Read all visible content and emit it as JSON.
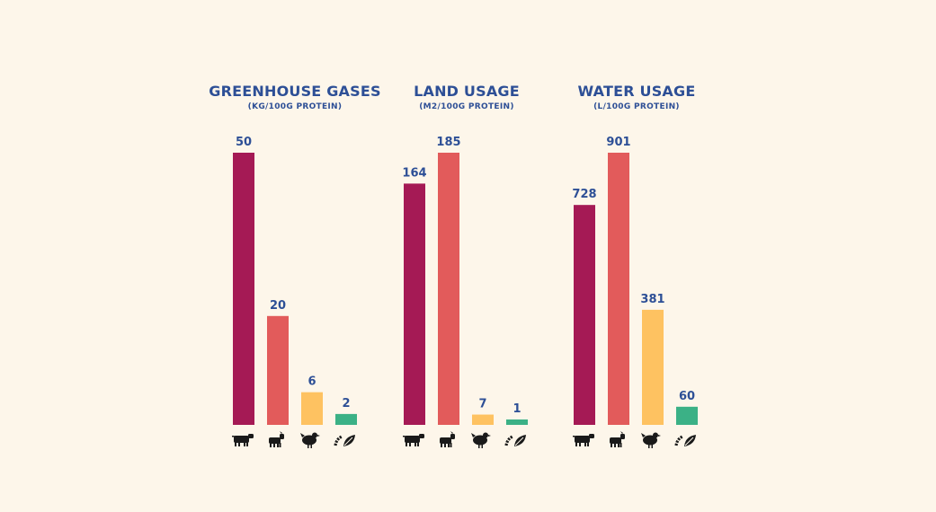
{
  "chart_data": [
    {
      "type": "bar",
      "title": "GREENHOUSE GASES",
      "subtitle": "(KG/100G PROTEIN)",
      "categories": [
        "cow-icon",
        "goat-icon",
        "chicken-icon",
        "insect-plant-icon"
      ],
      "values": [
        50,
        20,
        6,
        2
      ],
      "value_labels": [
        "50",
        "20",
        "6",
        "2"
      ],
      "colors": [
        "#a51a55",
        "#e25b5b",
        "#fec261",
        "#3bb186"
      ]
    },
    {
      "type": "bar",
      "title": "LAND USAGE",
      "subtitle": "(M2/100G PROTEIN)",
      "categories": [
        "cow-icon",
        "goat-icon",
        "chicken-icon",
        "insect-plant-icon"
      ],
      "values": [
        164,
        185,
        7,
        1
      ],
      "value_labels": [
        "164",
        "185",
        "7",
        "1"
      ],
      "colors": [
        "#a51a55",
        "#e25b5b",
        "#fec261",
        "#3bb186"
      ]
    },
    {
      "type": "bar",
      "title": "WATER USAGE",
      "subtitle": "(L/100G PROTEIN)",
      "categories": [
        "cow-icon",
        "goat-icon",
        "chicken-icon",
        "insect-plant-icon"
      ],
      "values": [
        728,
        901,
        381,
        60
      ],
      "value_labels": [
        "728",
        "901",
        "381",
        "60"
      ],
      "colors": [
        "#a51a55",
        "#e25b5b",
        "#fec261",
        "#3bb186"
      ]
    }
  ]
}
